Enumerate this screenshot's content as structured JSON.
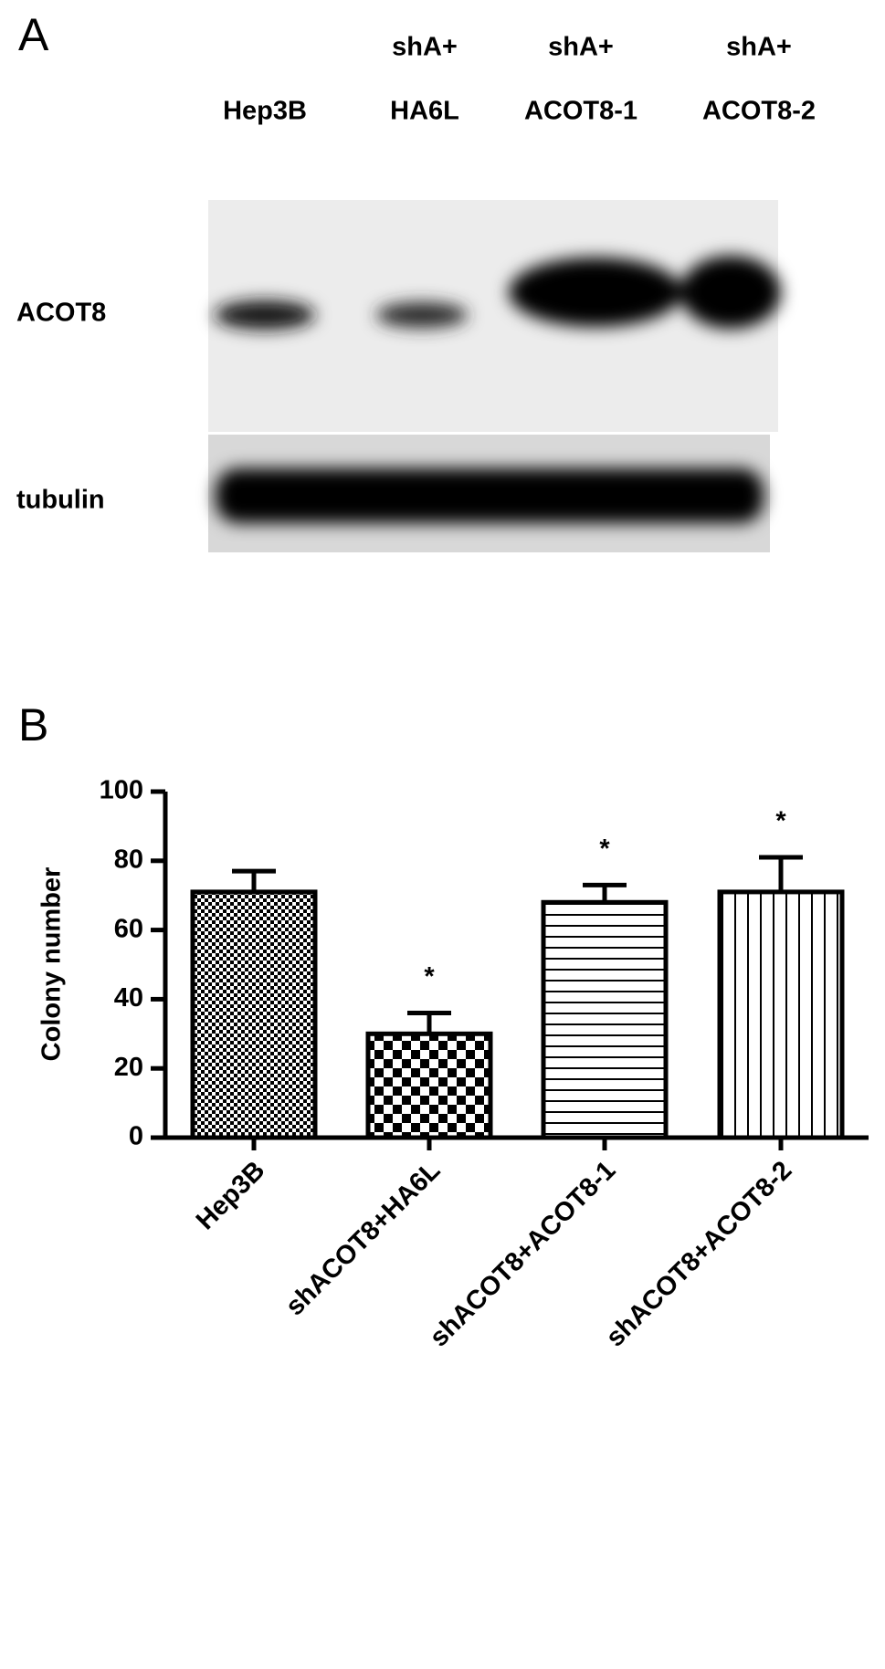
{
  "blot": {
    "panel_label": "A",
    "lanes": [
      {
        "top": null,
        "bottom": "Hep3B"
      },
      {
        "top": "shA+",
        "bottom": "HA6L"
      },
      {
        "top": "shA+",
        "bottom": "ACOT8-1"
      },
      {
        "top": "shA+",
        "bottom": "ACOT8-2"
      }
    ],
    "rows": [
      "ACOT8",
      "tubulin"
    ]
  },
  "chart_data": {
    "type": "bar",
    "panel_label": "B",
    "y_label": "Colony number",
    "categories": [
      "Hep3B",
      "shACOT8+HA6L",
      "shACOT8+ACOT8-1",
      "shACOT8+ACOT8-2"
    ],
    "series": [
      {
        "color": "#000000",
        "values": [
          71,
          30,
          68,
          71
        ],
        "errors": [
          6,
          6,
          5,
          10
        ]
      }
    ],
    "annotations": [
      null,
      "*",
      "*",
      "*"
    ],
    "ylim": [
      0,
      100
    ],
    "yticks": [
      0,
      20,
      40,
      60,
      80,
      100
    ]
  }
}
